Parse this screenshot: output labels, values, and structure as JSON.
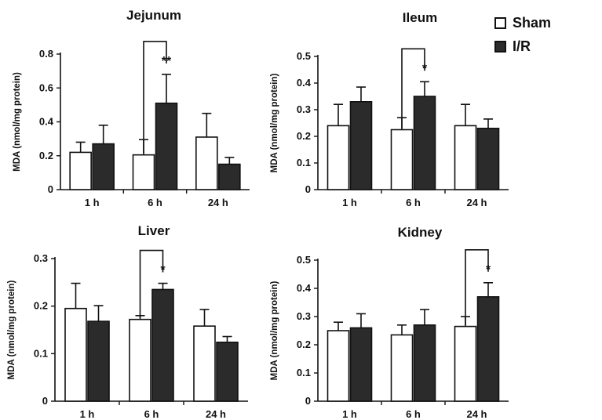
{
  "legend": {
    "items": [
      {
        "label": "Sham",
        "color": "#ffffff"
      },
      {
        "label": "I/R",
        "color": "#2b2b2b"
      }
    ]
  },
  "chart_data": [
    {
      "type": "bar",
      "title": "Jejunum",
      "ylabel": "MDA (nmol/mg protein)",
      "xlabel": "",
      "categories": [
        "1 h",
        "6 h",
        "24 h"
      ],
      "ylim": [
        0,
        0.8
      ],
      "yticks": [
        "0",
        "0.2",
        "0.4",
        "0.6",
        "0.8"
      ],
      "series": [
        {
          "name": "Sham",
          "values": [
            0.22,
            0.205,
            0.31
          ],
          "errors": [
            0.06,
            0.09,
            0.14
          ]
        },
        {
          "name": "I/R",
          "values": [
            0.27,
            0.51,
            0.15
          ],
          "errors": [
            0.11,
            0.17,
            0.04
          ]
        }
      ],
      "annotations": [
        {
          "category": "6 h",
          "text": "**"
        }
      ]
    },
    {
      "type": "bar",
      "title": "Ileum",
      "ylabel": "MDA (nmol/mg protein)",
      "xlabel": "",
      "categories": [
        "1 h",
        "6 h",
        "24 h"
      ],
      "ylim": [
        0,
        0.5
      ],
      "yticks": [
        "0",
        "0.1",
        "0.2",
        "0.3",
        "0.4",
        "0.5"
      ],
      "series": [
        {
          "name": "Sham",
          "values": [
            0.24,
            0.225,
            0.24
          ],
          "errors": [
            0.08,
            0.045,
            0.08
          ]
        },
        {
          "name": "I/R",
          "values": [
            0.33,
            0.35,
            0.23
          ],
          "errors": [
            0.055,
            0.055,
            0.035
          ]
        }
      ],
      "annotations": [
        {
          "category": "6 h",
          "text": "*"
        }
      ]
    },
    {
      "type": "bar",
      "title": "Liver",
      "ylabel": "MDA (nmol/mg protein)",
      "xlabel": "",
      "categories": [
        "1 h",
        "6 h",
        "24 h"
      ],
      "ylim": [
        0,
        0.3
      ],
      "yticks": [
        "0",
        "0.1",
        "0.2",
        "0.3"
      ],
      "series": [
        {
          "name": "Sham",
          "values": [
            0.195,
            0.172,
            0.158
          ],
          "errors": [
            0.053,
            0.008,
            0.035
          ]
        },
        {
          "name": "I/R",
          "values": [
            0.168,
            0.235,
            0.124
          ],
          "errors": [
            0.033,
            0.013,
            0.012
          ]
        }
      ],
      "annotations": [
        {
          "category": "6 h",
          "text": "*"
        }
      ]
    },
    {
      "type": "bar",
      "title": "Kidney",
      "ylabel": "MDA (nmol/mg protein)",
      "xlabel": "",
      "categories": [
        "1 h",
        "6 h",
        "24 h"
      ],
      "ylim": [
        0,
        0.5
      ],
      "yticks": [
        "0",
        "0.1",
        "0.2",
        "0.3",
        "0.4",
        "0.5"
      ],
      "series": [
        {
          "name": "Sham",
          "values": [
            0.25,
            0.235,
            0.265
          ],
          "errors": [
            0.03,
            0.035,
            0.035
          ]
        },
        {
          "name": "I/R",
          "values": [
            0.26,
            0.27,
            0.37
          ],
          "errors": [
            0.05,
            0.055,
            0.05
          ]
        }
      ],
      "annotations": [
        {
          "category": "24 h",
          "text": "*"
        }
      ]
    }
  ]
}
